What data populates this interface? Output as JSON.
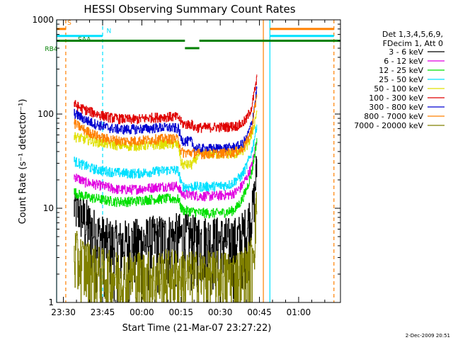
{
  "chart_data": {
    "type": "line",
    "title": "HESSI Observing Summary Count Rates",
    "xlabel": "Start Time (21-Mar-07 23:27:22)",
    "ylabel": "Count Rate (s⁻¹ detector⁻¹)",
    "y_scale": "log",
    "ylim": [
      1,
      1000
    ],
    "xlim_minutes_from_2330": [
      -2.6,
      106
    ],
    "x_ticks": [
      {
        "label": "23:30",
        "minutes": 0
      },
      {
        "label": "23:45",
        "minutes": 15
      },
      {
        "label": "00:00",
        "minutes": 30
      },
      {
        "label": "00:15",
        "minutes": 45
      },
      {
        "label": "00:30",
        "minutes": 60
      },
      {
        "label": "00:45",
        "minutes": 75
      },
      {
        "label": "01:00",
        "minutes": 90
      }
    ],
    "y_ticks": [
      {
        "label": "1",
        "value": 1
      },
      {
        "label": "10",
        "value": 10
      },
      {
        "label": "100",
        "value": 100
      },
      {
        "label": "1000",
        "value": 1000
      }
    ],
    "legend_header": [
      "Det 1,3,4,5,6,9,",
      "FDecim 1, Att 0"
    ],
    "legend_position": "right",
    "series": [
      {
        "name": "3 - 6 keV",
        "color": "#000000",
        "x": [
          4,
          6,
          8,
          10,
          12,
          14,
          16,
          18,
          20,
          22,
          25,
          28,
          31,
          34,
          37,
          40,
          43,
          46,
          49,
          52,
          55,
          58,
          61,
          64,
          66,
          68,
          70,
          72,
          73,
          74
        ],
        "y": [
          10.5,
          9.5,
          7.5,
          6.5,
          5.5,
          5,
          4.5,
          4.3,
          4.2,
          4.2,
          4.3,
          4.4,
          4.5,
          4.7,
          4.8,
          4.9,
          5,
          5,
          4.8,
          4.8,
          4.7,
          4.6,
          4.6,
          4.5,
          4.6,
          5,
          6,
          9,
          14,
          30
        ]
      },
      {
        "name": "6 - 12 keV",
        "color": "#e000e0",
        "x": [
          4,
          6,
          8,
          10,
          12,
          14,
          16,
          18,
          20,
          22,
          25,
          28,
          31,
          34,
          37,
          40,
          43,
          44,
          45,
          46,
          49,
          52,
          55,
          58,
          61,
          64,
          66,
          68,
          70,
          72,
          73,
          74
        ],
        "y": [
          22,
          20.5,
          19,
          18.5,
          18,
          17.5,
          17,
          16.5,
          16,
          15.8,
          15.8,
          16,
          16.3,
          16.6,
          17,
          17.2,
          17.2,
          17,
          14.5,
          14,
          14,
          13.5,
          13.5,
          13.6,
          13.8,
          14,
          15,
          17,
          21,
          28,
          38,
          55
        ]
      },
      {
        "name": "12 - 25 keV",
        "color": "#00e000",
        "x": [
          4,
          6,
          8,
          10,
          12,
          14,
          16,
          18,
          20,
          22,
          25,
          28,
          31,
          34,
          37,
          40,
          43,
          44,
          45,
          46,
          49,
          52,
          55,
          58,
          61,
          64,
          66,
          68,
          70,
          72,
          73,
          74
        ],
        "y": [
          15,
          14,
          13.5,
          13,
          12.8,
          12.5,
          12.2,
          12,
          11.8,
          11.8,
          11.8,
          12,
          12.3,
          12.5,
          12.6,
          12.7,
          12.6,
          12.5,
          10,
          9.5,
          9.3,
          9,
          8.9,
          8.9,
          9,
          9.3,
          10,
          12,
          16,
          24,
          36,
          55
        ]
      },
      {
        "name": "25 - 50 keV",
        "color": "#00e0ff",
        "x": [
          4,
          6,
          8,
          10,
          12,
          14,
          16,
          18,
          20,
          22,
          25,
          28,
          31,
          34,
          37,
          40,
          43,
          44,
          45,
          46,
          49,
          52,
          55,
          58,
          61,
          64,
          66,
          68,
          70,
          72,
          73,
          74
        ],
        "y": [
          32,
          30,
          28.5,
          27,
          26,
          25.5,
          25,
          24.5,
          24,
          23.8,
          23.5,
          23.5,
          24,
          24.5,
          25,
          25.5,
          25.5,
          25,
          18,
          17,
          17,
          17,
          17,
          17.2,
          17.5,
          18,
          20,
          22,
          28,
          40,
          55,
          80
        ]
      },
      {
        "name": "50 - 100 keV",
        "color": "#e0e000",
        "x": [
          4,
          6,
          8,
          10,
          12,
          14,
          16,
          18,
          20,
          22,
          25,
          28,
          31,
          34,
          37,
          40,
          43,
          44,
          45,
          46,
          49,
          52,
          55,
          58,
          61,
          64,
          66,
          68,
          70,
          72,
          73,
          74
        ],
        "y": [
          58,
          56,
          54,
          53,
          51,
          50,
          49,
          48,
          47,
          46.5,
          46,
          46,
          46.5,
          47,
          48,
          48,
          47.5,
          47,
          30,
          29,
          29,
          38,
          38,
          38,
          38,
          38,
          38,
          40,
          45,
          60,
          80,
          110
        ]
      },
      {
        "name": "100 - 300 keV",
        "color": "#e00000",
        "x": [
          4,
          6,
          8,
          10,
          12,
          14,
          16,
          18,
          20,
          22,
          25,
          28,
          31,
          34,
          37,
          40,
          43,
          44,
          45,
          46,
          49,
          50,
          52,
          55,
          58,
          61,
          64,
          66,
          68,
          70,
          72,
          73,
          74
        ],
        "y": [
          128,
          118,
          112,
          107,
          102,
          98,
          95,
          92,
          90,
          89,
          88,
          88,
          90,
          92,
          93,
          94,
          93,
          92,
          82,
          78,
          78,
          72,
          72,
          72,
          73,
          73,
          74,
          75,
          78,
          88,
          120,
          170,
          240
        ]
      },
      {
        "name": "300 - 800 keV",
        "color": "#0000d0",
        "x": [
          4,
          6,
          8,
          10,
          12,
          14,
          16,
          18,
          20,
          22,
          25,
          28,
          31,
          34,
          37,
          40,
          43,
          44,
          45,
          46,
          49,
          50,
          52,
          55,
          58,
          61,
          64,
          66,
          68,
          70,
          72,
          73,
          74
        ],
        "y": [
          102,
          95,
          88,
          83,
          79,
          76,
          73,
          71,
          70,
          69,
          69,
          69.5,
          70,
          71,
          72,
          72,
          71,
          70,
          54,
          52,
          51,
          44,
          43,
          43,
          43,
          43.5,
          44,
          45,
          47,
          55,
          80,
          120,
          190
        ]
      },
      {
        "name": "800 - 7000 keV",
        "color": "#ff8000",
        "x": [
          4,
          6,
          8,
          10,
          12,
          14,
          16,
          18,
          20,
          22,
          25,
          28,
          31,
          34,
          37,
          40,
          43,
          44,
          45,
          46,
          49,
          52,
          55,
          58,
          61,
          64,
          66,
          68,
          70,
          72,
          73,
          74
        ],
        "y": [
          80,
          74,
          68,
          64,
          60,
          57,
          55,
          54,
          53,
          52,
          52,
          52,
          53,
          54,
          54.5,
          55,
          54.5,
          54,
          40,
          39,
          39,
          38,
          38,
          38,
          38.5,
          39,
          40,
          42,
          50,
          70,
          110,
          160
        ]
      },
      {
        "name": "7000 - 20000 keV",
        "color": "#808000",
        "x": [
          4,
          6,
          8,
          10,
          12,
          14,
          16,
          18,
          20,
          22,
          25,
          28,
          31,
          34,
          37,
          40,
          43,
          46,
          49,
          52,
          55,
          58,
          61,
          64,
          66,
          68,
          70,
          72,
          73,
          74
        ],
        "y": [
          3.5,
          3,
          2.7,
          2.5,
          2.3,
          2.2,
          2.1,
          2,
          2,
          2,
          2,
          2,
          2,
          2,
          2,
          2.1,
          2.1,
          2,
          2,
          2,
          2,
          2,
          2,
          2,
          2,
          2.1,
          2.3,
          3,
          6,
          12
        ]
      }
    ],
    "state_bars": [
      {
        "label": "S",
        "color": "#ff8000",
        "value": 800,
        "ranges": [
          [
            -2.6,
            0.9
          ],
          [
            79,
            103.5
          ]
        ]
      },
      {
        "label": "N",
        "color": "#00e0ff",
        "value": 675,
        "ranges": [
          [
            -2.6,
            15
          ],
          [
            79,
            103.5
          ]
        ]
      },
      {
        "label": "SAA",
        "color": "#008000",
        "value": 600,
        "ranges": [
          [
            -2.6,
            46.5
          ],
          [
            52,
            106
          ]
        ]
      },
      {
        "label": "RB4",
        "color": "#008000",
        "value": 500,
        "ranges": [
          [
            46.5,
            52
          ]
        ]
      }
    ],
    "label_s": "S",
    "label_n": "N",
    "label_saa": "SAA",
    "label_rb4": "RB4",
    "vertical_lines": [
      {
        "minutes": 0.9,
        "color": "#ff8000",
        "style": "dashed"
      },
      {
        "minutes": 15,
        "color": "#00e0ff",
        "style": "dashed"
      },
      {
        "minutes": -2.6,
        "color": "#00e0ff",
        "style": "solid"
      },
      {
        "minutes": 76.5,
        "color": "#ff8000",
        "style": "solid"
      },
      {
        "minutes": 79,
        "color": "#00e0ff",
        "style": "solid"
      },
      {
        "minutes": 103.5,
        "color": "#ff8000",
        "style": "dashed"
      }
    ],
    "grid": false
  },
  "footer_date": "2-Dec-2009 20:51"
}
